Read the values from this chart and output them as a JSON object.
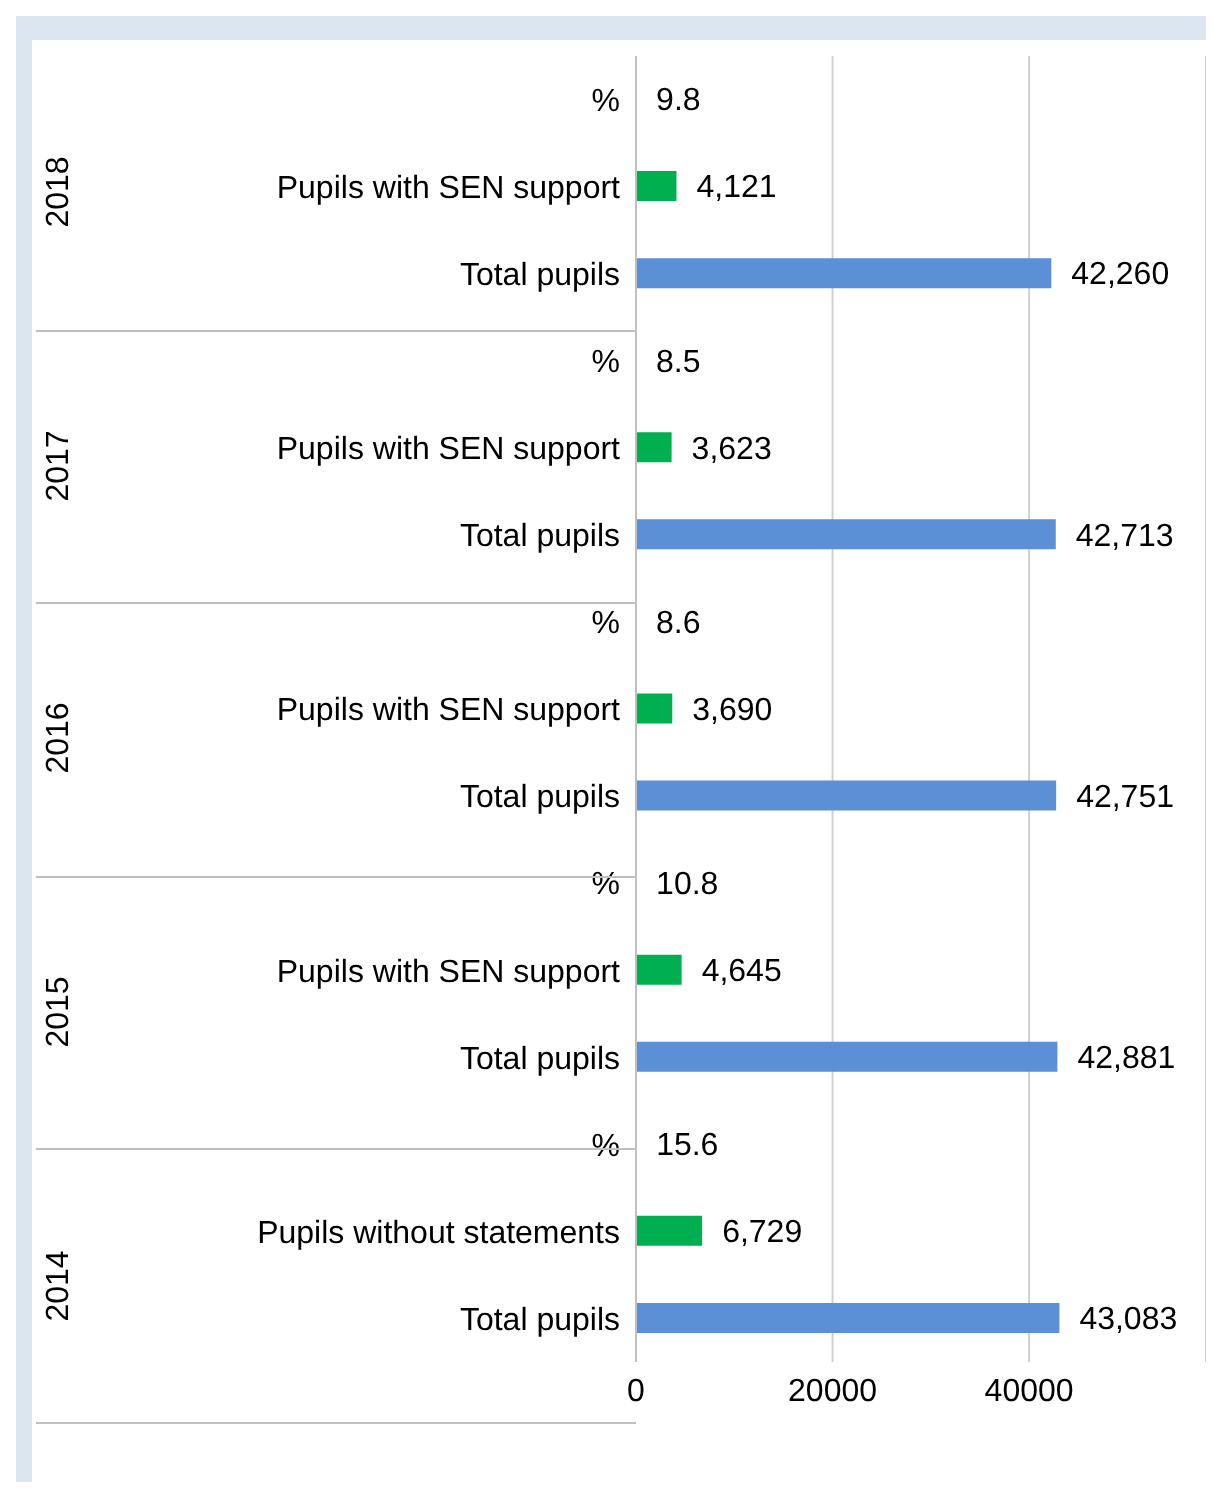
{
  "chart_data": {
    "type": "bar",
    "orientation": "horizontal",
    "categories": [
      "%",
      "Pupils with SEN support",
      "Total pupils",
      "%",
      "Pupils with SEN support",
      "Total pupils",
      "%",
      "Pupils with SEN support",
      "Total pupils",
      "%",
      "Pupils with SEN support",
      "Total pupils",
      "%",
      "Pupils without statements",
      "Total pupils"
    ],
    "values": [
      9.8,
      4121,
      42260,
      8.5,
      3623,
      42713,
      8.6,
      3690,
      42751,
      10.8,
      4645,
      42881,
      15.6,
      6729,
      43083
    ],
    "value_labels": [
      "9.8",
      "4,121",
      "42,260",
      "8.5",
      "3,623",
      "42,713",
      "8.6",
      "3,690",
      "42,751",
      "10.8",
      "4,645",
      "42,881",
      "15.6",
      "6,729",
      "43,083"
    ],
    "colors": [
      "#5b8fd6",
      "#00b050",
      "#5b8fd6",
      "#5b8fd6",
      "#00b050",
      "#5b8fd6",
      "#5b8fd6",
      "#00b050",
      "#5b8fd6",
      "#5b8fd6",
      "#00b050",
      "#5b8fd6",
      "#5b8fd6",
      "#00b050",
      "#5b8fd6"
    ],
    "annotations": [
      "2018",
      "2017",
      "2016",
      "2015",
      "2014"
    ],
    "xlim": [
      0,
      58000
    ],
    "xticks": [
      0,
      20000,
      40000
    ],
    "grid": "x"
  }
}
